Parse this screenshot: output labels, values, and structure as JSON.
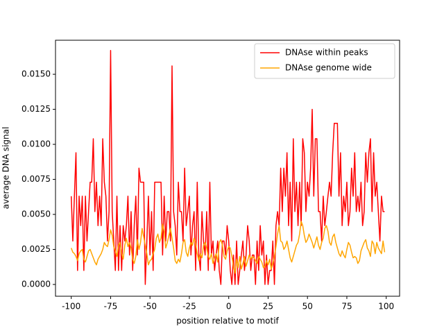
{
  "chart_data": {
    "type": "line",
    "xlabel": "position relative to motif",
    "ylabel": "average DNA signal",
    "x": [
      -100,
      -99,
      -98,
      -97,
      -96,
      -95,
      -94,
      -93,
      -92,
      -91,
      -90,
      -89,
      -88,
      -87,
      -86,
      -85,
      -84,
      -83,
      -82,
      -81,
      -80,
      -79,
      -78,
      -77,
      -76,
      -75,
      -74,
      -73,
      -72,
      -71,
      -70,
      -69,
      -68,
      -67,
      -66,
      -65,
      -64,
      -63,
      -62,
      -61,
      -60,
      -59,
      -58,
      -57,
      -56,
      -55,
      -54,
      -53,
      -52,
      -51,
      -50,
      -49,
      -48,
      -47,
      -46,
      -45,
      -44,
      -43,
      -42,
      -41,
      -40,
      -39,
      -38,
      -37,
      -36,
      -35,
      -34,
      -33,
      -32,
      -31,
      -30,
      -29,
      -28,
      -27,
      -26,
      -25,
      -24,
      -23,
      -22,
      -21,
      -20,
      -19,
      -18,
      -17,
      -16,
      -15,
      -14,
      -13,
      -12,
      -11,
      -10,
      -9,
      -8,
      -7,
      -6,
      -5,
      -4,
      -3,
      -2,
      -1,
      0,
      1,
      2,
      3,
      4,
      5,
      6,
      7,
      8,
      9,
      10,
      11,
      12,
      13,
      14,
      15,
      16,
      17,
      18,
      19,
      20,
      21,
      22,
      23,
      24,
      25,
      26,
      27,
      28,
      29,
      30,
      31,
      32,
      33,
      34,
      35,
      36,
      37,
      38,
      39,
      40,
      41,
      42,
      43,
      44,
      45,
      46,
      47,
      48,
      49,
      50,
      51,
      52,
      53,
      54,
      55,
      56,
      57,
      58,
      59,
      60,
      61,
      62,
      63,
      64,
      65,
      66,
      67,
      68,
      69,
      70,
      71,
      72,
      73,
      74,
      75,
      76,
      77,
      78,
      79,
      80,
      81,
      82,
      83,
      84,
      85,
      86,
      87,
      88,
      89,
      90,
      91,
      92,
      93,
      94,
      95,
      96,
      97,
      98,
      99
    ],
    "series": [
      {
        "name": "DNAse within peaks",
        "color": "#ff0000",
        "values": [
          0.0063,
          0.0031,
          0.0063,
          0.0094,
          0.001,
          0.0063,
          0.0042,
          0.0063,
          0.001,
          0.0063,
          0.0031,
          0.0052,
          0.0073,
          0.0073,
          0.0104,
          0.0052,
          0.0073,
          0.0042,
          0.0063,
          0.0042,
          0.0104,
          0.0073,
          0.0063,
          0.0031,
          0.0052,
          0.0167,
          0.0052,
          0.0031,
          0.001,
          0.0063,
          0.001,
          0.0042,
          0.001,
          0.0042,
          0.0031,
          0.0042,
          0.0063,
          0.0021,
          0.0052,
          0.001,
          0.0042,
          0.0063,
          0.0021,
          0.0083,
          0.0073,
          0.0073,
          0.0073,
          0.0,
          0.0031,
          0.0063,
          0.0021,
          0.0052,
          0.001,
          0.0073,
          0.0073,
          0.0073,
          0.0073,
          0.0073,
          0.0021,
          0.0063,
          0.0031,
          0.0052,
          0.0052,
          0.0031,
          0.0156,
          0.0052,
          0.0042,
          0.0021,
          0.0073,
          0.0052,
          0.0052,
          0.0031,
          0.0083,
          0.0042,
          0.0052,
          0.0063,
          0.0021,
          0.0042,
          0.0052,
          0.001,
          0.0073,
          0.0021,
          0.001,
          0.0052,
          0.0031,
          0.0021,
          0.0052,
          0.001,
          0.0073,
          0.0021,
          0.0031,
          0.001,
          0.0021,
          0.0031,
          0.001,
          0.0,
          0.0031,
          0.0031,
          0.0021,
          0.0042,
          0.0031,
          0.001,
          0.0,
          0.0021,
          0.0,
          0.0031,
          0.0,
          0.001,
          0.0021,
          0.0031,
          0.001,
          0.0021,
          0.0042,
          0.0031,
          0.001,
          0.0021,
          0.0021,
          0.0,
          0.0031,
          0.001,
          0.0042,
          0.0021,
          0.0031,
          0.0,
          0.0021,
          0.0,
          0.001,
          0.001,
          0.0031,
          0.0,
          0.0042,
          0.0052,
          0.0042,
          0.0083,
          0.0052,
          0.0083,
          0.0063,
          0.0094,
          0.0042,
          0.0073,
          0.0031,
          0.0104,
          0.0052,
          0.0073,
          0.0042,
          0.0073,
          0.0042,
          0.0104,
          0.0094,
          0.0052,
          0.0073,
          0.0063,
          0.0083,
          0.0125,
          0.0063,
          0.0104,
          0.0104,
          0.0052,
          0.0052,
          0.0031,
          0.0063,
          0.0042,
          0.0052,
          0.0063,
          0.0073,
          0.0063,
          0.0094,
          0.0115,
          0.0115,
          0.0115,
          0.0063,
          0.0094,
          0.0042,
          0.0063,
          0.0052,
          0.0073,
          0.0042,
          0.0052,
          0.0083,
          0.0063,
          0.0094,
          0.0052,
          0.0063,
          0.0052,
          0.0073,
          0.0042,
          0.0052,
          0.0094,
          0.0073,
          0.0094,
          0.0104,
          0.0052,
          0.0094,
          0.0063,
          0.0073,
          0.0052,
          0.0031,
          0.0063,
          0.0052,
          0.0052
        ]
      },
      {
        "name": "DNAse genome wide",
        "color": "#ffa500",
        "values": [
          0.0026,
          0.0023,
          0.0022,
          0.002,
          0.0017,
          0.0022,
          0.0024,
          0.0025,
          0.0018,
          0.0016,
          0.002,
          0.0024,
          0.0025,
          0.0022,
          0.0019,
          0.0016,
          0.0014,
          0.0018,
          0.002,
          0.0022,
          0.0025,
          0.003,
          0.0028,
          0.0027,
          0.0032,
          0.0039,
          0.0035,
          0.0027,
          0.0024,
          0.002,
          0.0028,
          0.003,
          0.0022,
          0.0018,
          0.0028,
          0.0033,
          0.0027,
          0.003,
          0.0026,
          0.0018,
          0.0015,
          0.002,
          0.0032,
          0.0025,
          0.003,
          0.004,
          0.0034,
          0.0028,
          0.0022,
          0.0014,
          0.0017,
          0.0018,
          0.0022,
          0.0025,
          0.0033,
          0.0036,
          0.003,
          0.0033,
          0.0043,
          0.0038,
          0.0026,
          0.003,
          0.0035,
          0.004,
          0.0033,
          0.0026,
          0.0017,
          0.0015,
          0.0018,
          0.0016,
          0.0022,
          0.003,
          0.0032,
          0.0023,
          0.002,
          0.0026,
          0.003,
          0.0028,
          0.0033,
          0.0029,
          0.0022,
          0.0017,
          0.0022,
          0.0019,
          0.0028,
          0.003,
          0.0026,
          0.002,
          0.0018,
          0.0022,
          0.0015,
          0.0019,
          0.0022,
          0.0016,
          0.003,
          0.0032,
          0.0028,
          0.002,
          0.0018,
          0.0024,
          0.0027,
          0.0026,
          0.002,
          0.0013,
          0.0008,
          0.0018,
          0.0012,
          0.002,
          0.0011,
          0.0015,
          0.002,
          0.0013,
          0.0017,
          0.0021,
          0.0018,
          0.002,
          0.0019,
          0.0017,
          0.0015,
          0.002,
          0.0018,
          0.0016,
          0.0012,
          0.0013,
          0.0017,
          0.0014,
          0.0018,
          0.0011,
          0.0015,
          0.002,
          0.0027,
          0.0036,
          0.0042,
          0.0031,
          0.003,
          0.0025,
          0.0027,
          0.0031,
          0.0025,
          0.0019,
          0.0016,
          0.002,
          0.0024,
          0.0028,
          0.003,
          0.0036,
          0.0045,
          0.0042,
          0.0035,
          0.003,
          0.0032,
          0.0036,
          0.0033,
          0.003,
          0.0026,
          0.003,
          0.0034,
          0.0028,
          0.0025,
          0.003,
          0.0033,
          0.004,
          0.0042,
          0.0038,
          0.003,
          0.0028,
          0.0034,
          0.0036,
          0.003,
          0.0026,
          0.0022,
          0.002,
          0.0024,
          0.0021,
          0.0019,
          0.0025,
          0.003,
          0.0028,
          0.0023,
          0.0019,
          0.002,
          0.0019,
          0.0015,
          0.0017,
          0.0024,
          0.0027,
          0.003,
          0.0032,
          0.0026,
          0.0024,
          0.002,
          0.0031,
          0.0029,
          0.0022,
          0.003,
          0.0026,
          0.0024,
          0.0022,
          0.0031,
          0.0023
        ]
      }
    ],
    "xlim": [
      -110,
      108.5
    ],
    "xticks": [
      -100,
      -75,
      -50,
      -25,
      0,
      25,
      50,
      75,
      100
    ],
    "ylim": [
      -0.00084,
      0.01743
    ],
    "yticks": [
      {
        "value": 0,
        "label": "0.0000"
      },
      {
        "value": 0.0025,
        "label": "0.0025"
      },
      {
        "value": 0.005,
        "label": "0.0050"
      },
      {
        "value": 0.0075,
        "label": "0.0075"
      },
      {
        "value": 0.01,
        "label": "0.0100"
      },
      {
        "value": 0.0125,
        "label": "0.0125"
      },
      {
        "value": 0.015,
        "label": "0.0150"
      }
    ],
    "legend": "upper right"
  }
}
